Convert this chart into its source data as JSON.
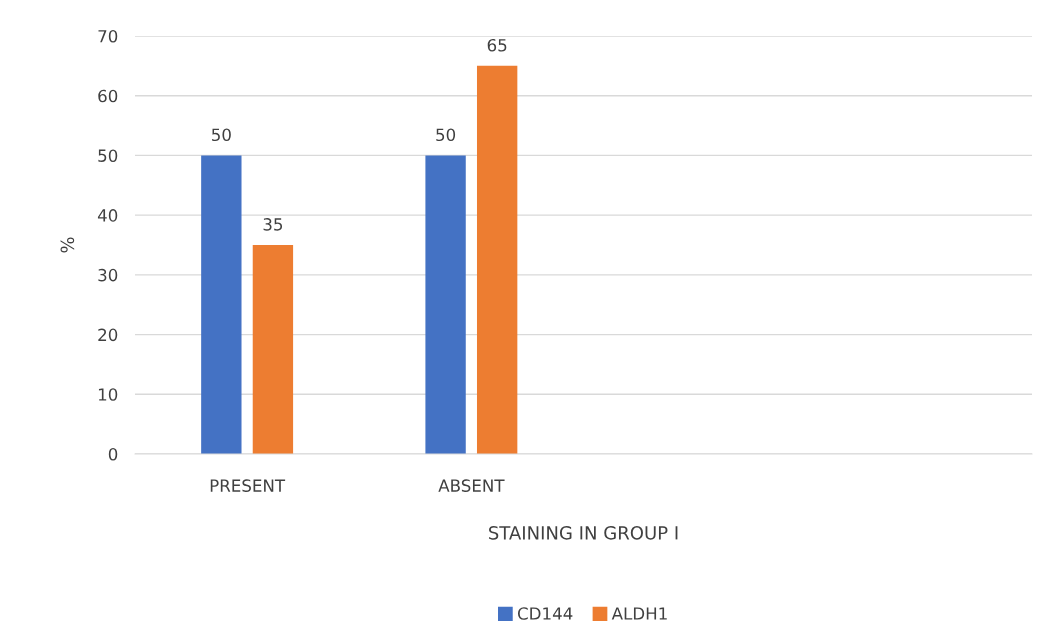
{
  "chart_data": {
    "type": "bar",
    "xlabel": "STAINING IN GROUP I",
    "ylabel": "%",
    "categories": [
      "PRESENT",
      "ABSENT",
      null,
      null
    ],
    "series": [
      {
        "name": "CD144",
        "color": "#4472c4",
        "values": [
          50,
          50,
          null,
          null
        ]
      },
      {
        "name": "ALDH1",
        "color": "#ed7d31",
        "values": [
          35,
          65,
          null,
          null
        ]
      }
    ],
    "ylim": [
      0,
      70
    ],
    "yticks": [
      0,
      10,
      20,
      30,
      40,
      50,
      60,
      70
    ],
    "grid": "y",
    "legend": "bottom",
    "data_labels": true
  }
}
